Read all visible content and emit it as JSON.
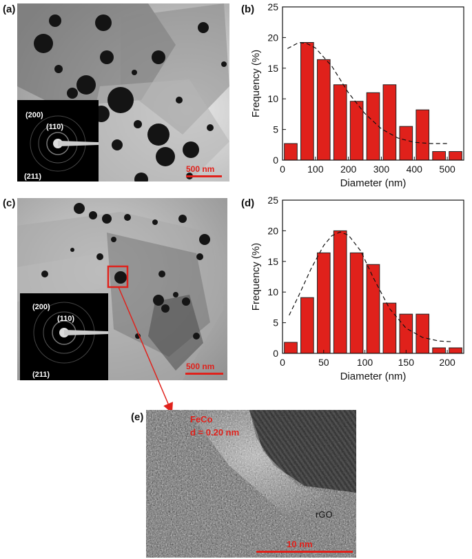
{
  "panels": {
    "a": {
      "label": "(a)",
      "scale_bar": "500 nm",
      "saed": [
        "(200)",
        "(110)",
        "(211)"
      ]
    },
    "b": {
      "label": "(b)"
    },
    "c": {
      "label": "(c)",
      "scale_bar": "500 nm",
      "saed": [
        "(200)",
        "(110)",
        "(211)"
      ]
    },
    "d": {
      "label": "(d)"
    },
    "e": {
      "label": "(e)",
      "scale_bar": "10 nm",
      "annot_1": "FeCo",
      "annot_2": "d = 0.20 nm",
      "annot_3": "rGO"
    }
  },
  "colors": {
    "bar": "#e0211b",
    "bar_edge": "#222222",
    "annotation": "#e0211b"
  },
  "chart_data": [
    {
      "type": "bar",
      "panel": "b",
      "xlabel": "Diameter (nm)",
      "ylabel": "Frequency (%)",
      "xlim": [
        0,
        550
      ],
      "ylim": [
        0,
        25
      ],
      "xticks": [
        0,
        100,
        200,
        300,
        400,
        500
      ],
      "yticks": [
        0,
        5,
        10,
        15,
        20,
        25
      ],
      "bin_width": 50,
      "x": [
        25,
        75,
        125,
        175,
        225,
        275,
        325,
        375,
        425,
        475,
        525
      ],
      "values": [
        2.7,
        19.2,
        16.4,
        12.3,
        9.6,
        11.0,
        12.3,
        5.5,
        8.2,
        1.4,
        1.4
      ],
      "fit_curve": {
        "type": "dashed",
        "x": [
          15,
          50,
          75,
          100,
          150,
          200,
          250,
          300,
          350,
          400,
          450,
          500
        ],
        "y": [
          18.2,
          19.2,
          19.0,
          18.3,
          15.3,
          11.0,
          7.6,
          5.1,
          3.6,
          2.9,
          2.7,
          2.7
        ]
      }
    },
    {
      "type": "bar",
      "panel": "d",
      "xlabel": "Diameter (nm)",
      "ylabel": "Frequency (%)",
      "xlim": [
        0,
        220
      ],
      "ylim": [
        0,
        25
      ],
      "xticks": [
        0,
        50,
        100,
        150,
        200
      ],
      "yticks": [
        0,
        5,
        10,
        15,
        20,
        25
      ],
      "bin_width": 20,
      "x": [
        10,
        30,
        50,
        70,
        90,
        110,
        130,
        150,
        170,
        190,
        210
      ],
      "values": [
        1.8,
        9.1,
        16.4,
        20.0,
        16.4,
        14.5,
        8.2,
        6.4,
        6.4,
        0.9,
        0.9
      ],
      "fit_curve": {
        "type": "dashed",
        "x": [
          8,
          20,
          35,
          50,
          60,
          70,
          80,
          95,
          110,
          130,
          150,
          170,
          190,
          205
        ],
        "y": [
          6.2,
          9.5,
          13.9,
          17.6,
          19.2,
          19.8,
          19.3,
          16.7,
          12.4,
          7.3,
          4.1,
          2.6,
          2.0,
          1.9
        ]
      }
    }
  ]
}
